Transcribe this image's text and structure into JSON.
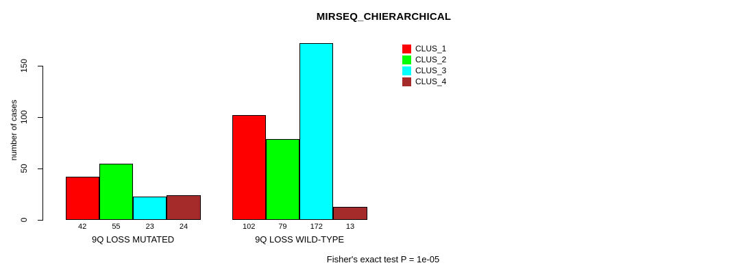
{
  "chart_data": {
    "type": "bar",
    "title": "MIRSEQ_CHIERARCHICAL",
    "xlabel": "",
    "ylabel": "number of cases",
    "categories": [
      "9Q LOSS MUTATED",
      "9Q LOSS WILD-TYPE"
    ],
    "series": [
      {
        "name": "CLUS_1",
        "color": "#FF0000",
        "values": [
          42,
          102
        ]
      },
      {
        "name": "CLUS_2",
        "color": "#00FF00",
        "values": [
          55,
          79
        ]
      },
      {
        "name": "CLUS_3",
        "color": "#00FFFF",
        "values": [
          23,
          172
        ]
      },
      {
        "name": "CLUS_4",
        "color": "#A52A2A",
        "values": [
          24,
          13
        ]
      }
    ],
    "yticks": [
      0,
      50,
      100,
      150
    ],
    "ylim": [
      0,
      172
    ],
    "grid": false,
    "bar_value_labels": true,
    "bar_border_color": "#000000",
    "legend_position": "top-right",
    "footnote": "Fisher's exact test P = 1e-05"
  }
}
